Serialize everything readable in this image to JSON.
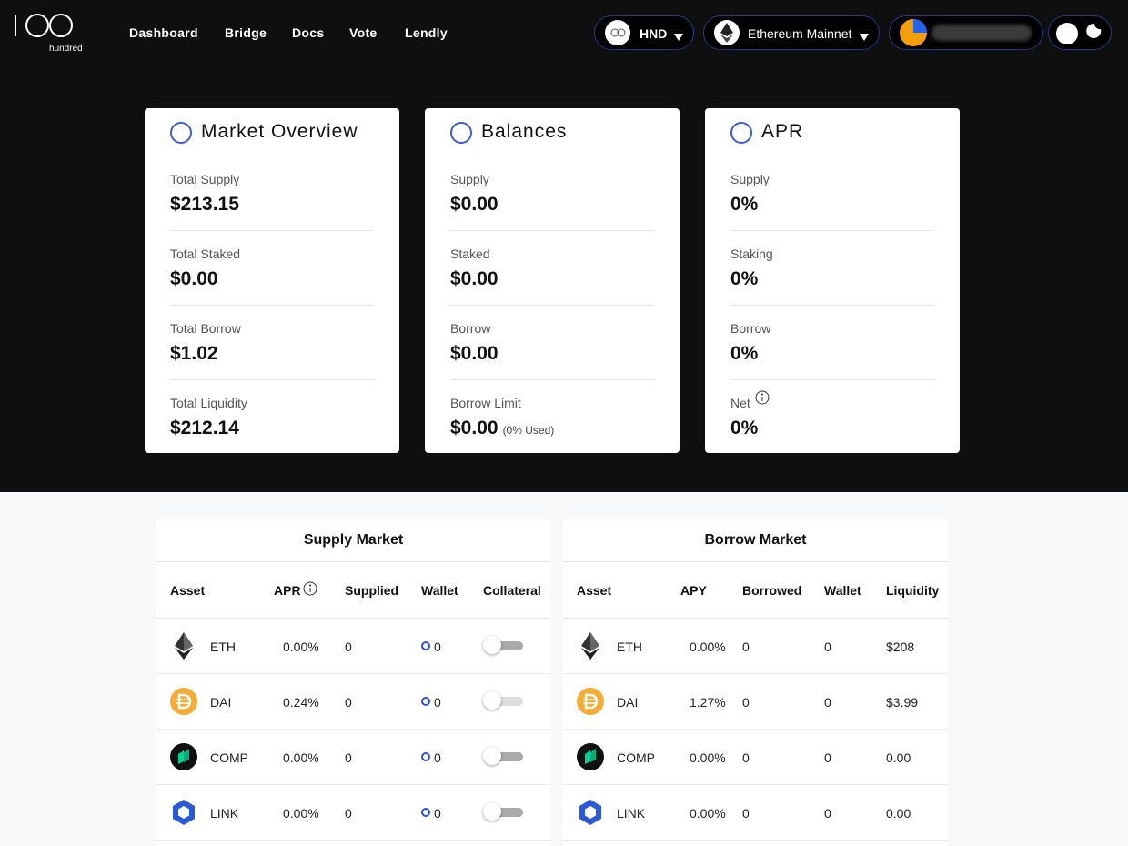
{
  "header": {
    "logo_text": "hundred",
    "nav": [
      "Dashboard",
      "Bridge",
      "Docs",
      "Vote",
      "Lendly"
    ],
    "token": "HND",
    "network": "Ethereum Mainnet"
  },
  "overview_cards": [
    {
      "title": "Market Overview",
      "items": [
        {
          "label": "Total Supply",
          "value": "$213.15"
        },
        {
          "label": "Total Staked",
          "value": "$0.00"
        },
        {
          "label": "Total Borrow",
          "value": "$1.02"
        },
        {
          "label": "Total Liquidity",
          "value": "$212.14"
        }
      ]
    },
    {
      "title": "Balances",
      "items": [
        {
          "label": "Supply",
          "value": "$0.00"
        },
        {
          "label": "Staked",
          "value": "$0.00"
        },
        {
          "label": "Borrow",
          "value": "$0.00"
        },
        {
          "label": "Borrow Limit",
          "value": "$0.00",
          "note": "(0% Used)"
        }
      ]
    },
    {
      "title": "APR",
      "items": [
        {
          "label": "Supply",
          "value": "0%"
        },
        {
          "label": "Staking",
          "value": "0%"
        },
        {
          "label": "Borrow",
          "value": "0%"
        },
        {
          "label": "Net",
          "value": "0%",
          "info": true
        }
      ]
    }
  ],
  "markets": [
    {
      "title": "Supply Market",
      "columns": [
        "Asset",
        "APR",
        "Supplied",
        "Wallet",
        "Collateral"
      ],
      "rows": [
        [
          "ETH",
          "0.00%",
          "0",
          "0"
        ],
        [
          "DAI",
          "0.24%",
          "0",
          "0"
        ],
        [
          "COMP",
          "0.00%",
          "0",
          "0"
        ],
        [
          "LINK",
          "0.00%",
          "0",
          "0"
        ]
      ]
    },
    {
      "title": "Borrow Market",
      "columns": [
        "Asset",
        "APY",
        "Borrowed",
        "Wallet",
        "Liquidity"
      ],
      "rows": [
        [
          "ETH",
          "0.00%",
          "0",
          "0",
          "$208"
        ],
        [
          "DAI",
          "1.27%",
          "0",
          "0",
          "$3.99"
        ],
        [
          "COMP",
          "0.00%",
          "0",
          "0",
          "0.00"
        ],
        [
          "LINK",
          "0.00%",
          "0",
          "0",
          "0.00"
        ]
      ]
    }
  ]
}
